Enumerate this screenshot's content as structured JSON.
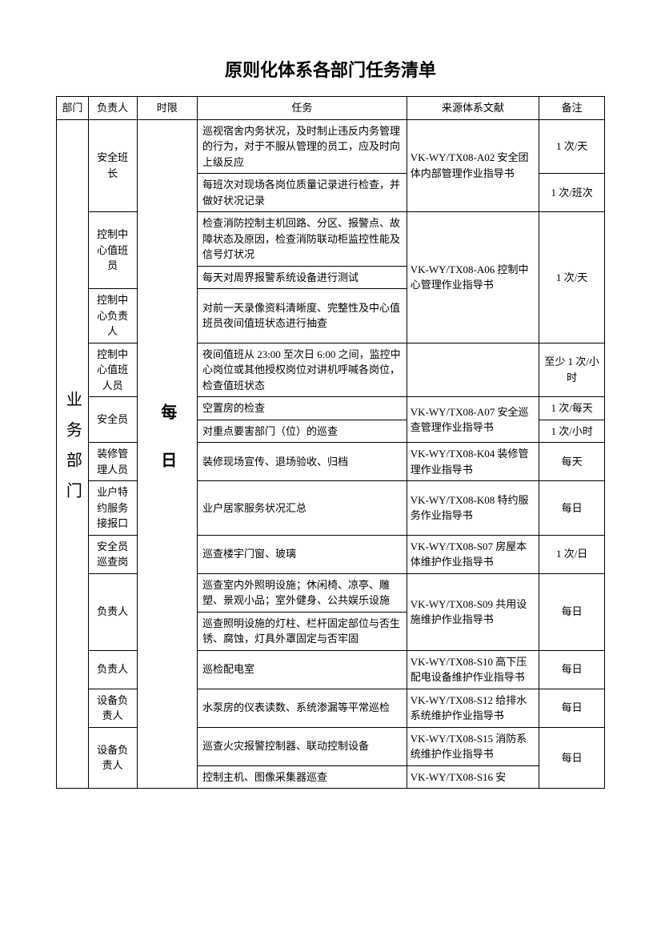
{
  "title": "原则化体系各部门任务清单",
  "headers": {
    "dept": "部门",
    "owner": "负责人",
    "time": "时限",
    "task": "任务",
    "source": "来源体系文献",
    "note": "备注"
  },
  "dept_label": "业务部门",
  "time_label": "每日",
  "rows": [
    {
      "owner": "安全班长",
      "task": "巡视宿舍内务状况，及时制止违反内务管理的行为，对于不服从管理的员工，应及时向上级反应",
      "note": "1 次/天"
    },
    {
      "task": "每班次对现场各岗位质量记录进行检查，并做好状况记录",
      "note": "1 次/班次"
    },
    {
      "owner": "控制中心值班员",
      "task": "检查消防控制主机回路、分区、报警点、故障状态及原因，检查消防联动柜监控性能及信号灯状况"
    },
    {
      "task": "每天对周界报警系统设备进行测试"
    },
    {
      "owner": "控制中心负责人",
      "task": "对前一天录像资料清晰度、完整性及中心值班员夜间值班状态进行抽查"
    },
    {
      "owner": "控制中心值班人员",
      "task": "夜间值班从 23:00 至次日 6:00 之间，监控中心岗位或其他授权岗位对讲机呼喊各岗位，检查值班状态",
      "note": "至少 1 次/小时"
    },
    {
      "owner": "安全员",
      "task": "空置房的检查",
      "note": "1 次/每天"
    },
    {
      "task": "对重点要害部门（位）的巡查",
      "note": "1 次/小时"
    },
    {
      "owner": "装修管理人员",
      "task": "装修现场宣传、退场验收、归档",
      "source": "VK-WY/TX08-K04 装修管理作业指导书",
      "note": "每天"
    },
    {
      "owner": "业户特约服务接报口",
      "task": "业户居家服务状况汇总",
      "source": "VK-WY/TX08-K08 特约服务作业指导书",
      "note": "每日"
    },
    {
      "owner": "安全员巡查岗",
      "task": "巡查楼宇门窗、玻璃",
      "source": "VK-WY/TX08-S07 房屋本体维护作业指导书",
      "note": "1 次/日"
    },
    {
      "owner": "负责人",
      "task": "巡查室内外照明设施；休闲椅、凉亭、雕塑、景观小品；室外健身、公共娱乐设施"
    },
    {
      "task": "巡查照明设施的灯柱、栏杆固定部位与否生锈、腐蚀，灯具外罩固定与否牢固"
    },
    {
      "owner": "负责人",
      "task": "巡检配电室",
      "source": "VK-WY/TX08-S10 高下压配电设备维护作业指导书",
      "note": "每日"
    },
    {
      "owner": "设备负责人",
      "task": "水泵房的仪表读数、系统渗漏等平常巡检",
      "source": "VK-WY/TX08-S12 给排水系统维护作业指导书",
      "note": "每日"
    },
    {
      "owner": "设备负责人",
      "task": "巡查火灾报警控制器、联动控制设备",
      "source": "VK-WY/TX08-S15 消防系统维护作业指导书",
      "note": "每日"
    },
    {
      "task": "控制主机、图像采集器巡查",
      "source": "VK-WY/TX08-S16 安"
    }
  ],
  "merged_sources": {
    "s1": "VK-WY/TX08-A02 安全团体内部管理作业指导书",
    "s2": "VK-WY/TX08-A06 控制中心管理作业指导书",
    "s3": "VK-WY/TX08-A07 安全巡查管理作业指导书",
    "s4": "VK-WY/TX08-S09 共用设施维护作业指导书"
  },
  "merged_notes": {
    "n1": "1 次/天",
    "n2": "每日"
  }
}
